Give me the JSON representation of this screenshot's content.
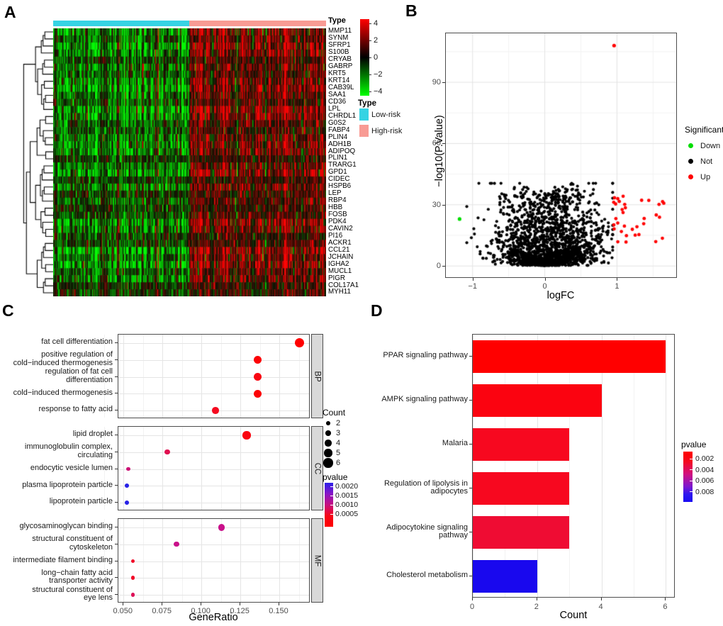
{
  "figure": {
    "panel_labels": {
      "a": "A",
      "b": "B",
      "c": "C",
      "d": "D"
    }
  },
  "chart_data": [
    {
      "id": "A",
      "type": "heatmap",
      "annotation_label": "Type",
      "rows": [
        "MMP11",
        "SYNM",
        "SFRP1",
        "S100B",
        "CRYAB",
        "GABRP",
        "KRT5",
        "KRT14",
        "CAB39L",
        "SAA1",
        "CD36",
        "LPL",
        "CHRDL1",
        "G0S2",
        "FABP4",
        "PLIN4",
        "ADH1B",
        "ADIPOQ",
        "PLIN1",
        "TRARG1",
        "GPD1",
        "CIDEC",
        "HSPB6",
        "LEP",
        "RBP4",
        "HBB",
        "FOSB",
        "PDK4",
        "CAVIN2",
        "PI16",
        "ACKR1",
        "CCL21",
        "JCHAIN",
        "IGHA2",
        "MUCL1",
        "PIGR",
        "COL17A1",
        "MYH11"
      ],
      "n_columns": 300,
      "column_groups": {
        "legend_title": "Type",
        "items": [
          {
            "label": "Low-risk",
            "color": "#36d3e3",
            "fraction": 0.499
          },
          {
            "label": "High-risk",
            "color": "#f89b94",
            "fraction": 0.501
          }
        ]
      },
      "colorbar": {
        "ticks": [
          4,
          2,
          0,
          -2,
          -4
        ],
        "vmax": 4.5,
        "vmin": -4.5,
        "high_color": "#ff0000",
        "mid_color": "#000000",
        "low_color": "#00ff00"
      },
      "pattern": "high-risk columns shifted red, low-risk columns shifted green, procedural noise"
    },
    {
      "id": "B",
      "type": "scatter",
      "xlabel": "logFC",
      "ylabel": "−log10(P.Value)",
      "x_ticks": [
        {
          "v": -1,
          "label": "−1"
        },
        {
          "v": 0,
          "label": "0"
        },
        {
          "v": 1,
          "label": "1"
        }
      ],
      "y_ticks": [
        0,
        30,
        60,
        90
      ],
      "xlim": [
        -1.37,
        1.82
      ],
      "ylim": [
        -5.5,
        114
      ],
      "legend": {
        "title": "Significant",
        "items": [
          {
            "label": "Down",
            "color": "#00dd00"
          },
          {
            "label": "Not",
            "color": "#000000"
          },
          {
            "label": "Up",
            "color": "#ff0000"
          }
        ]
      },
      "highlight_points": [
        {
          "x": 0.96,
          "y": 108,
          "significant": "Up",
          "color": "#ff0000"
        },
        {
          "x": -1.18,
          "y": 23,
          "significant": "Down",
          "color": "#00dd00"
        }
      ],
      "background_cloud": {
        "n": 1900,
        "x_range": [
          -1.08,
          0.94
        ],
        "y_range": [
          0,
          40
        ],
        "color": "#000000"
      },
      "up_cluster": {
        "n": 34,
        "x_range": [
          0.95,
          1.72
        ],
        "y_range": [
          11,
          36
        ],
        "color": "#ff0000"
      }
    },
    {
      "id": "C",
      "type": "dot",
      "xlabel": "GeneRatio",
      "x_ticks": [
        "0.050",
        "0.075",
        "0.100",
        "0.125",
        "0.150"
      ],
      "xlim": [
        0.0467,
        0.17
      ],
      "facets": [
        {
          "name": "BP",
          "terms": [
            {
              "label": "fat cell differentiation",
              "gene_ratio": 0.163,
              "count": 6,
              "pvalue": 0.0002,
              "color": "#ff0000"
            },
            {
              "label": "positive regulation of\ncold−induced thermogenesis",
              "gene_ratio": 0.136,
              "count": 5,
              "pvalue": 0.0002,
              "color": "#fc0306"
            },
            {
              "label": "regulation of fat cell\ndifferentiation",
              "gene_ratio": 0.136,
              "count": 5,
              "pvalue": 0.0003,
              "color": "#f90712"
            },
            {
              "label": "cold−induced thermogenesis",
              "gene_ratio": 0.136,
              "count": 5,
              "pvalue": 0.0002,
              "color": "#fc0306"
            },
            {
              "label": "response to fatty acid",
              "gene_ratio": 0.109,
              "count": 4,
              "pvalue": 0.0004,
              "color": "#f50a20"
            }
          ]
        },
        {
          "name": "CC",
          "terms": [
            {
              "label": "lipid droplet",
              "gene_ratio": 0.129,
              "count": 5,
              "pvalue": 0.0003,
              "color": "#fa0510"
            },
            {
              "label": "immunoglobulin complex,\ncirculating",
              "gene_ratio": 0.078,
              "count": 3,
              "pvalue": 0.0008,
              "color": "#e01050"
            },
            {
              "label": "endocytic vesicle lumen",
              "gene_ratio": 0.053,
              "count": 2,
              "pvalue": 0.0011,
              "color": "#cc1175"
            },
            {
              "label": "plasma lipoprotein particle",
              "gene_ratio": 0.052,
              "count": 2,
              "pvalue": 0.0019,
              "color": "#2822e6"
            },
            {
              "label": "lipoprotein particle",
              "gene_ratio": 0.052,
              "count": 2,
              "pvalue": 0.0019,
              "color": "#2822e6"
            }
          ]
        },
        {
          "name": "MF",
          "terms": [
            {
              "label": "glycosaminoglycan binding",
              "gene_ratio": 0.113,
              "count": 4,
              "pvalue": 0.001,
              "color": "#c9108a"
            },
            {
              "label": "structural constituent of\ncytoskeleton",
              "gene_ratio": 0.084,
              "count": 3,
              "pvalue": 0.001,
              "color": "#c9108a"
            },
            {
              "label": "intermediate filament binding",
              "gene_ratio": 0.056,
              "count": 2,
              "pvalue": 0.0005,
              "color": "#f20a28"
            },
            {
              "label": "long−chain fatty acid\ntransporter activity",
              "gene_ratio": 0.056,
              "count": 2,
              "pvalue": 0.0005,
              "color": "#f20a28"
            },
            {
              "label": "structural constituent of\neye lens",
              "gene_ratio": 0.056,
              "count": 2,
              "pvalue": 0.0008,
              "color": "#dd1158"
            }
          ]
        }
      ],
      "count_legend": {
        "title": "Count",
        "sizes": [
          2,
          3,
          4,
          5,
          6
        ]
      },
      "pvalue_legend": {
        "title": "pvalue",
        "ticks": [
          "0.0020",
          "0.0015",
          "0.0010",
          "0.0005"
        ],
        "gradient_top": "#2b20e8",
        "gradient_bottom": "#ff0000"
      }
    },
    {
      "id": "D",
      "type": "bar",
      "xlabel": "Count",
      "x_ticks": [
        0,
        2,
        4,
        6
      ],
      "xlim": [
        0,
        6.3
      ],
      "categories": [
        "PPAR signaling pathway",
        "AMPK signaling pathway",
        "Malaria",
        "Regulation of lipolysis in\nadipocytes",
        "Adipocytokine signaling\npathway",
        "Cholesterol metabolism"
      ],
      "values": [
        6,
        4,
        3,
        3,
        3,
        2
      ],
      "pvalues": [
        0.0005,
        0.001,
        0.0015,
        0.0015,
        0.002,
        0.008
      ],
      "colors": [
        "#ff0000",
        "#fb0310",
        "#f7081f",
        "#f7081f",
        "#ef0c33",
        "#1908ee"
      ],
      "pvalue_legend": {
        "title": "pvalue",
        "ticks": [
          "0.002",
          "0.004",
          "0.006",
          "0.008"
        ],
        "gradient_top": "#ff0000",
        "gradient_bottom": "#2b16ef"
      }
    }
  ]
}
